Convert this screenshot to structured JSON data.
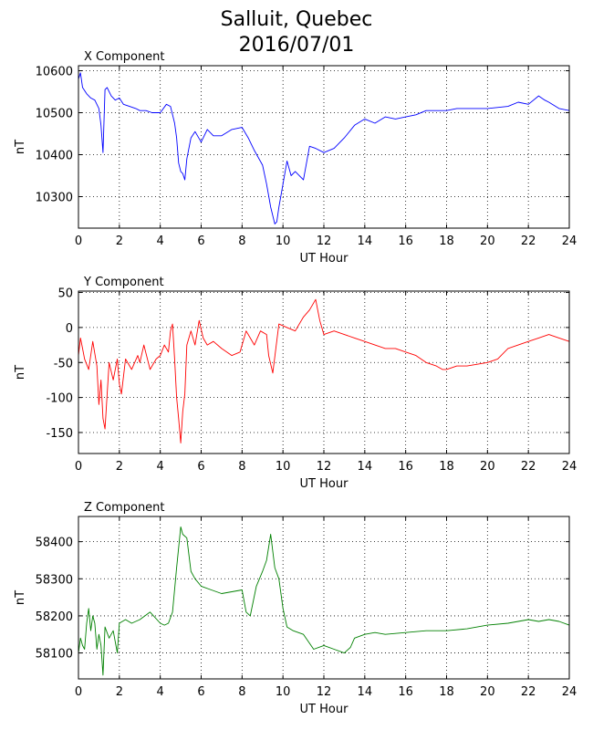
{
  "title": {
    "line1": "Salluit, Quebec",
    "line2": "2016/07/01"
  },
  "chart_data": [
    {
      "type": "line",
      "title": "X Component",
      "xlabel": "UT Hour",
      "ylabel": "nT",
      "xlim": [
        0,
        24
      ],
      "ylim": [
        10225,
        10612
      ],
      "xticks": [
        0,
        2,
        4,
        6,
        8,
        10,
        12,
        14,
        16,
        18,
        20,
        22,
        24
      ],
      "yticks": [
        10300,
        10400,
        10500,
        10600
      ],
      "grid": true,
      "color": "#0000ff",
      "x": [
        0,
        0.1,
        0.2,
        0.4,
        0.6,
        0.8,
        1.0,
        1.1,
        1.2,
        1.3,
        1.4,
        1.6,
        1.8,
        2.0,
        2.2,
        2.5,
        2.8,
        3.0,
        3.3,
        3.6,
        4.0,
        4.3,
        4.5,
        4.7,
        4.8,
        4.9,
        5.0,
        5.1,
        5.2,
        5.3,
        5.5,
        5.7,
        6.0,
        6.3,
        6.6,
        7.0,
        7.5,
        8.0,
        8.3,
        8.6,
        9.0,
        9.2,
        9.4,
        9.6,
        9.7,
        9.8,
        10.0,
        10.2,
        10.4,
        10.6,
        11.0,
        11.3,
        11.6,
        12.0,
        12.5,
        13.0,
        13.5,
        14.0,
        14.5,
        15.0,
        15.5,
        16.0,
        16.5,
        17.0,
        17.5,
        18.0,
        18.5,
        19.0,
        20.0,
        21.0,
        21.5,
        22.0,
        22.5,
        22.8,
        23.0,
        23.5,
        24.0
      ],
      "values": [
        10580,
        10595,
        10560,
        10545,
        10535,
        10530,
        10510,
        10470,
        10405,
        10555,
        10560,
        10540,
        10530,
        10535,
        10520,
        10515,
        10510,
        10505,
        10505,
        10500,
        10500,
        10520,
        10515,
        10475,
        10440,
        10380,
        10360,
        10355,
        10340,
        10390,
        10440,
        10455,
        10430,
        10460,
        10445,
        10445,
        10460,
        10465,
        10440,
        10410,
        10375,
        10330,
        10275,
        10235,
        10240,
        10275,
        10330,
        10385,
        10350,
        10360,
        10340,
        10420,
        10415,
        10405,
        10415,
        10440,
        10470,
        10485,
        10475,
        10490,
        10485,
        10490,
        10495,
        10505,
        10505,
        10505,
        10510,
        10510,
        10510,
        10515,
        10525,
        10520,
        10540,
        10530,
        10525,
        10510,
        10505
      ]
    },
    {
      "type": "line",
      "title": "Y Component",
      "xlabel": "UT Hour",
      "ylabel": "nT",
      "xlim": [
        0,
        24
      ],
      "ylim": [
        -180,
        52
      ],
      "xticks": [
        0,
        2,
        4,
        6,
        8,
        10,
        12,
        14,
        16,
        18,
        20,
        22,
        24
      ],
      "yticks": [
        50,
        0,
        -50,
        -100,
        -150
      ],
      "grid": true,
      "color": "#ff0000",
      "x": [
        0,
        0.1,
        0.2,
        0.3,
        0.5,
        0.7,
        0.9,
        1.0,
        1.1,
        1.2,
        1.3,
        1.5,
        1.7,
        1.9,
        2.0,
        2.1,
        2.3,
        2.6,
        2.9,
        3.0,
        3.2,
        3.5,
        3.8,
        4.0,
        4.2,
        4.4,
        4.5,
        4.6,
        4.7,
        4.8,
        4.9,
        5.0,
        5.1,
        5.2,
        5.3,
        5.5,
        5.7,
        5.9,
        6.1,
        6.3,
        6.6,
        7.0,
        7.5,
        7.9,
        8.2,
        8.4,
        8.6,
        8.9,
        9.2,
        9.3,
        9.5,
        9.8,
        10.2,
        10.6,
        11.0,
        11.3,
        11.6,
        11.8,
        12.0,
        12.5,
        13.0,
        13.5,
        14.0,
        14.5,
        15.0,
        15.5,
        16.0,
        16.5,
        17.0,
        17.5,
        17.8,
        18.0,
        18.5,
        19.0,
        20.0,
        20.5,
        21.0,
        21.5,
        22.0,
        22.5,
        23.0,
        23.5,
        24.0
      ],
      "values": [
        -40,
        -15,
        -30,
        -45,
        -60,
        -20,
        -55,
        -110,
        -75,
        -130,
        -145,
        -50,
        -75,
        -45,
        -80,
        -95,
        -45,
        -60,
        -40,
        -50,
        -25,
        -60,
        -45,
        -40,
        -25,
        -35,
        -5,
        5,
        -45,
        -100,
        -130,
        -165,
        -120,
        -95,
        -25,
        -5,
        -25,
        10,
        -15,
        -25,
        -20,
        -30,
        -40,
        -35,
        -5,
        -15,
        -25,
        -5,
        -10,
        -40,
        -65,
        5,
        0,
        -5,
        15,
        25,
        40,
        10,
        -10,
        -5,
        -10,
        -15,
        -20,
        -25,
        -30,
        -30,
        -35,
        -40,
        -50,
        -55,
        -60,
        -60,
        -55,
        -55,
        -50,
        -45,
        -30,
        -25,
        -20,
        -15,
        -10,
        -15,
        -20
      ]
    },
    {
      "type": "line",
      "title": "Z Component",
      "xlabel": "UT Hour",
      "ylabel": "nT",
      "xlim": [
        0,
        24
      ],
      "ylim": [
        58030,
        58468
      ],
      "xticks": [
        0,
        2,
        4,
        6,
        8,
        10,
        12,
        14,
        16,
        18,
        20,
        22,
        24
      ],
      "yticks": [
        58100,
        58200,
        58300,
        58400
      ],
      "grid": true,
      "color": "#008000",
      "x": [
        0,
        0.1,
        0.2,
        0.3,
        0.4,
        0.5,
        0.6,
        0.7,
        0.8,
        0.9,
        1.0,
        1.1,
        1.2,
        1.3,
        1.5,
        1.7,
        1.9,
        2.0,
        2.3,
        2.6,
        3.0,
        3.5,
        4.0,
        4.2,
        4.4,
        4.6,
        4.8,
        5.0,
        5.1,
        5.3,
        5.5,
        5.7,
        6.0,
        6.5,
        7.0,
        7.5,
        8.0,
        8.2,
        8.4,
        8.7,
        9.0,
        9.2,
        9.4,
        9.6,
        9.8,
        10.0,
        10.2,
        10.5,
        11.0,
        11.5,
        12.0,
        12.5,
        13.0,
        13.3,
        13.5,
        14.0,
        14.5,
        15.0,
        16.0,
        17.0,
        18.0,
        19.0,
        20.0,
        21.0,
        22.0,
        22.5,
        23.0,
        23.5,
        24.0
      ],
      "values": [
        58100,
        58140,
        58120,
        58110,
        58180,
        58220,
        58160,
        58200,
        58180,
        58110,
        58150,
        58120,
        58040,
        58170,
        58140,
        58160,
        58100,
        58180,
        58190,
        58180,
        58190,
        58210,
        58180,
        58175,
        58180,
        58210,
        58330,
        58440,
        58420,
        58410,
        58320,
        58300,
        58280,
        58270,
        58260,
        58265,
        58270,
        58210,
        58200,
        58280,
        58320,
        58350,
        58420,
        58330,
        58300,
        58220,
        58170,
        58160,
        58150,
        58110,
        58120,
        58110,
        58100,
        58115,
        58140,
        58150,
        58155,
        58150,
        58155,
        58160,
        58160,
        58165,
        58175,
        58180,
        58190,
        58185,
        58190,
        58185,
        58175
      ]
    }
  ]
}
